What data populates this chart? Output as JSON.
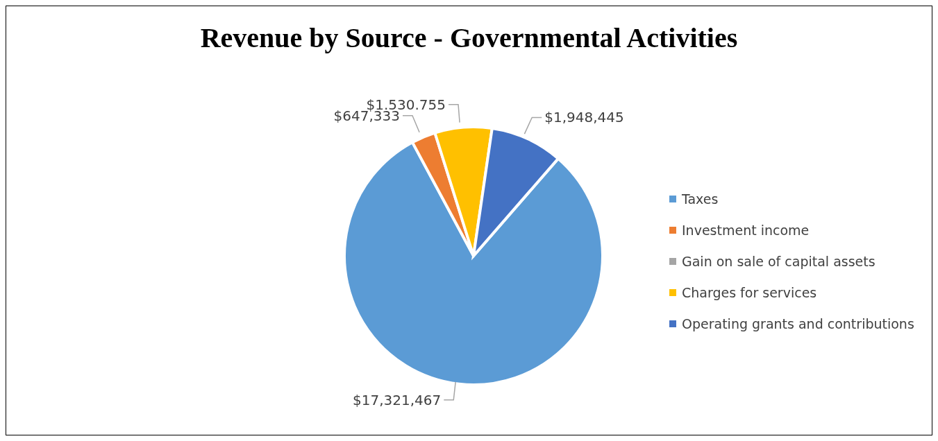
{
  "chart_data": {
    "type": "pie",
    "title": "Revenue by Source - Governmental Activities",
    "categories": [
      "Taxes",
      "Investment income",
      "Gain on sale of capital assets",
      "Charges for services",
      "Operating grants and contributions"
    ],
    "values": [
      17321467,
      647333,
      null,
      1530755,
      1948445
    ],
    "colors": [
      "#5b9bd5",
      "#ed7d31",
      "#a5a5a5",
      "#ffc000",
      "#4472c4"
    ],
    "value_labels": [
      "$17,321,467",
      "$647,333",
      null,
      "$1.530.755",
      "$1,948,445"
    ],
    "legend": "right"
  }
}
